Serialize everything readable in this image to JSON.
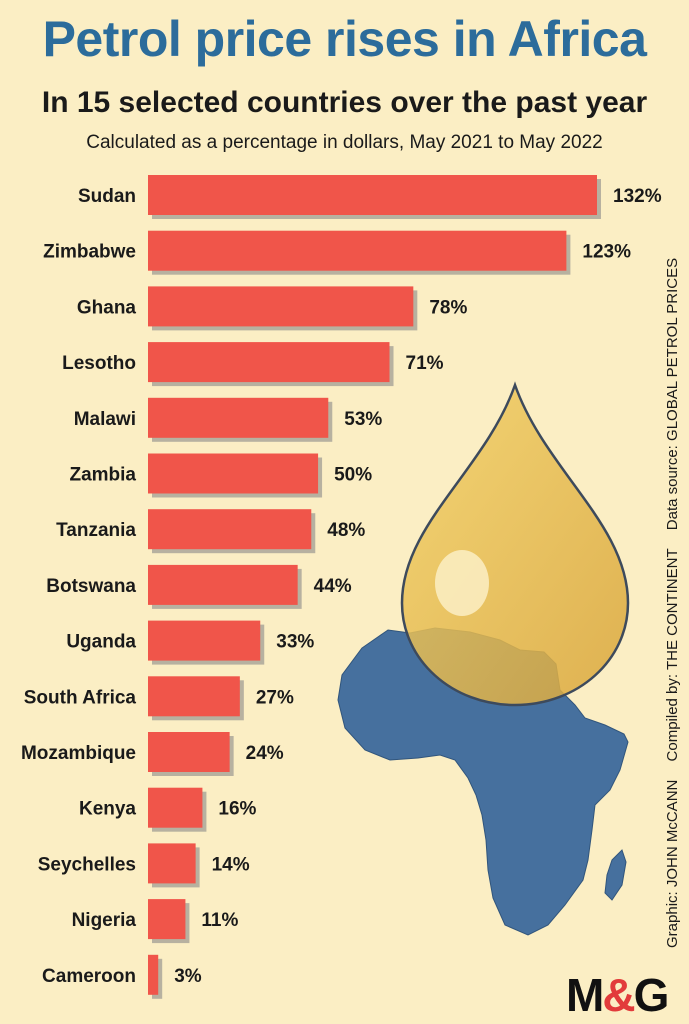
{
  "title": "Petrol price rises in Africa",
  "subtitle": "In 15 selected countries over the past year",
  "note": "Calculated as a percentage in dollars, May 2021 to May 2022",
  "credits": {
    "graphic": "Graphic: JOHN McCANN",
    "compiled": "Compiled by: THE CONTINENT",
    "source": "Data source: GLOBAL PETROL PRICES"
  },
  "logo": {
    "left": "M",
    "amp": "&",
    "right": "G"
  },
  "colors": {
    "background": "#fbeec4",
    "bar": "#f0554a",
    "bar_shadow": "#b7b1a0",
    "title": "#2c6c9b",
    "map": "#46709e",
    "drop": "#e9bd45"
  },
  "chart_data": {
    "type": "bar",
    "orientation": "horizontal",
    "categories": [
      "Sudan",
      "Zimbabwe",
      "Ghana",
      "Lesotho",
      "Malawi",
      "Zambia",
      "Tanzania",
      "Botswana",
      "Uganda",
      "South Africa",
      "Mozambique",
      "Kenya",
      "Seychelles",
      "Nigeria",
      "Cameroon"
    ],
    "values": [
      132,
      123,
      78,
      71,
      53,
      50,
      48,
      44,
      33,
      27,
      24,
      16,
      14,
      11,
      3
    ],
    "value_labels": [
      "132%",
      "123%",
      "78%",
      "71%",
      "53%",
      "50%",
      "48%",
      "44%",
      "33%",
      "27%",
      "24%",
      "16%",
      "14%",
      "11%",
      "3%"
    ],
    "unit": "%",
    "grid": false,
    "legend": "none"
  }
}
